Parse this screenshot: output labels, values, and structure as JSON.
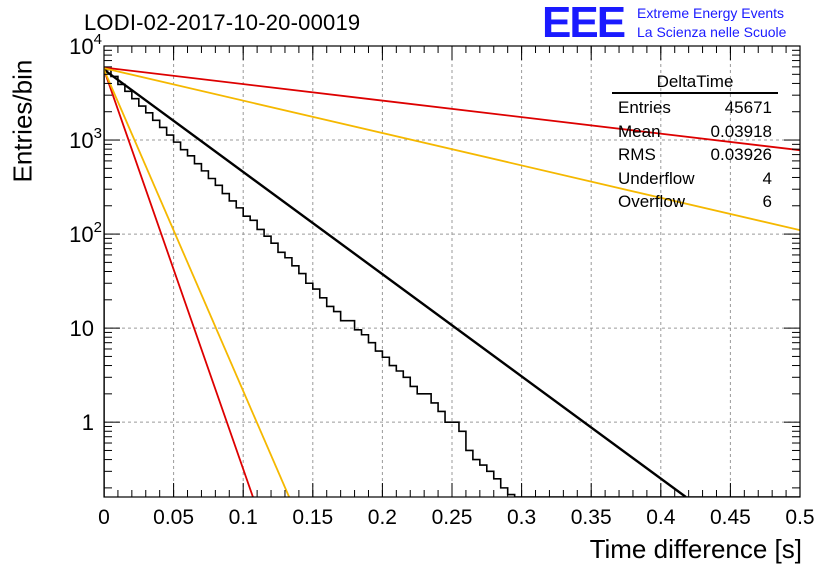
{
  "title": "LODI-02-2017-10-20-00019",
  "logo": {
    "mark": "EEE",
    "line1": "Extreme Energy Events",
    "line2": "La Scienza nelle Scuole",
    "color": "#1a1aff"
  },
  "stats": {
    "title": "DeltaTime",
    "rows": [
      {
        "label": "Entries",
        "value": "45671"
      },
      {
        "label": "Mean",
        "value": "0.03918"
      },
      {
        "label": "RMS",
        "value": "0.03926"
      },
      {
        "label": "Underflow",
        "value": "4"
      },
      {
        "label": "Overflow",
        "value": "6"
      }
    ]
  },
  "chart_data": {
    "type": "line",
    "xlabel": "Time difference [s]",
    "ylabel": "Entries/bin",
    "xlim": [
      0,
      0.5
    ],
    "ylim": [
      0.16,
      10000
    ],
    "yscale": "log",
    "grid": true,
    "x_ticks": [
      0,
      0.05,
      0.1,
      0.15,
      0.2,
      0.25,
      0.3,
      0.35,
      0.4,
      0.45,
      0.5
    ],
    "x_tick_labels": [
      "0",
      "0.05",
      "0.1",
      "0.15",
      "0.2",
      "0.25",
      "0.3",
      "0.35",
      "0.4",
      "0.45",
      "0.5"
    ],
    "y_ticks": [
      1,
      10,
      100,
      1000,
      10000
    ],
    "y_tick_labels": [
      "1",
      "10",
      "10^2",
      "10^3",
      "10^4"
    ],
    "histogram": {
      "color": "#000000",
      "bin_width": 0.005,
      "x_start": 0,
      "counts": [
        5600,
        4750,
        3900,
        3300,
        2750,
        2300,
        1950,
        1620,
        1360,
        1130,
        950,
        790,
        680,
        560,
        470,
        390,
        330,
        270,
        225,
        190,
        155,
        140,
        112,
        95,
        80,
        64,
        56,
        46,
        38,
        30,
        26,
        21,
        17,
        15,
        12,
        12,
        9.6,
        8.5,
        7.0,
        5.7,
        4.9,
        4.0,
        3.5,
        3.0,
        2.4,
        2.0,
        2.0,
        1.6,
        1.3,
        1.0,
        1.0,
        0.8,
        0.5,
        0.4,
        0.35,
        0.3,
        0.25,
        0.2,
        0.17,
        0,
        0,
        0,
        0,
        0,
        0,
        0,
        0,
        0,
        0,
        0,
        0,
        0,
        0,
        0,
        0,
        0,
        0,
        0,
        0,
        0,
        0,
        0,
        0,
        0,
        0,
        0,
        0,
        0,
        0,
        0,
        0,
        0,
        0,
        0,
        0,
        0,
        0,
        0,
        0,
        0
      ]
    },
    "series": [
      {
        "color": "#000000",
        "x": [
          0,
          0.418
        ],
        "y": [
          5600,
          0.16
        ]
      },
      {
        "color": "#dd0000",
        "x": [
          0,
          0.5
        ],
        "y": [
          5900,
          780
        ]
      },
      {
        "color": "#f5b800",
        "x": [
          0,
          0.5
        ],
        "y": [
          5800,
          110
        ]
      },
      {
        "color": "#dd0000",
        "x": [
          0,
          0.107
        ],
        "y": [
          5600,
          0.16
        ]
      },
      {
        "color": "#f5b800",
        "x": [
          0,
          0.133
        ],
        "y": [
          5600,
          0.16
        ]
      }
    ]
  }
}
